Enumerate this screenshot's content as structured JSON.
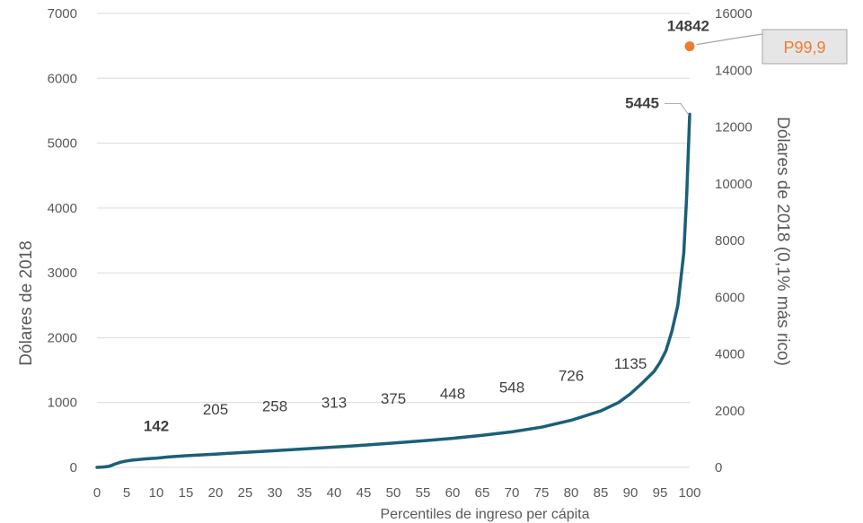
{
  "chart_data": {
    "type": "line",
    "xlabel": "Percentiles de ingreso per cápita",
    "ylabel": "Dólares de 2018",
    "y2label": "Dólares de 2018 (0,1% más rico)",
    "xlim": [
      0,
      100
    ],
    "ylim": [
      0,
      7000
    ],
    "y2lim": [
      0,
      16000
    ],
    "x_ticks": [
      0,
      5,
      10,
      15,
      20,
      25,
      30,
      35,
      40,
      45,
      50,
      55,
      60,
      65,
      70,
      75,
      80,
      85,
      90,
      95,
      100
    ],
    "y_ticks": [
      0,
      1000,
      2000,
      3000,
      4000,
      5000,
      6000,
      7000
    ],
    "y2_ticks": [
      0,
      2000,
      4000,
      6000,
      8000,
      10000,
      12000,
      14000,
      16000
    ],
    "grid": true,
    "series": [
      {
        "axis": "left",
        "color": "#1B5F7A",
        "x": [
          0,
          1,
          2,
          3,
          4,
          5,
          6,
          7,
          8,
          9,
          10,
          12,
          15,
          20,
          25,
          30,
          35,
          40,
          45,
          50,
          55,
          60,
          65,
          70,
          75,
          80,
          85,
          88,
          90,
          92,
          94,
          95,
          96,
          97,
          98,
          99,
          99.5,
          100
        ],
        "y": [
          0,
          5,
          15,
          50,
          80,
          100,
          112,
          122,
          130,
          137,
          142,
          160,
          180,
          205,
          232,
          258,
          285,
          313,
          342,
          375,
          410,
          448,
          495,
          548,
          620,
          726,
          870,
          1000,
          1135,
          1300,
          1480,
          1620,
          1800,
          2100,
          2500,
          3300,
          4200,
          5445
        ]
      },
      {
        "axis": "right",
        "color": "#ED7D31",
        "x": [
          100
        ],
        "y": [
          14842
        ]
      }
    ],
    "data_labels": [
      {
        "x": 10,
        "y": 142,
        "text": "142",
        "bold": true
      },
      {
        "x": 20,
        "y": 205,
        "text": "205",
        "bold": false
      },
      {
        "x": 30,
        "y": 258,
        "text": "258",
        "bold": false
      },
      {
        "x": 40,
        "y": 313,
        "text": "313",
        "bold": false
      },
      {
        "x": 50,
        "y": 375,
        "text": "375",
        "bold": false
      },
      {
        "x": 60,
        "y": 448,
        "text": "448",
        "bold": false
      },
      {
        "x": 70,
        "y": 548,
        "text": "548",
        "bold": false
      },
      {
        "x": 80,
        "y": 726,
        "text": "726",
        "bold": false
      },
      {
        "x": 90,
        "y": 1135,
        "text": "1135",
        "bold": false
      },
      {
        "x": 100,
        "y": 5445,
        "text": "5445",
        "bold": true
      }
    ],
    "right_label": {
      "x": 100,
      "y": 14842,
      "text": "14842",
      "bold": true
    },
    "callout": {
      "text": "P99,9",
      "color": "#ED7D31"
    }
  }
}
